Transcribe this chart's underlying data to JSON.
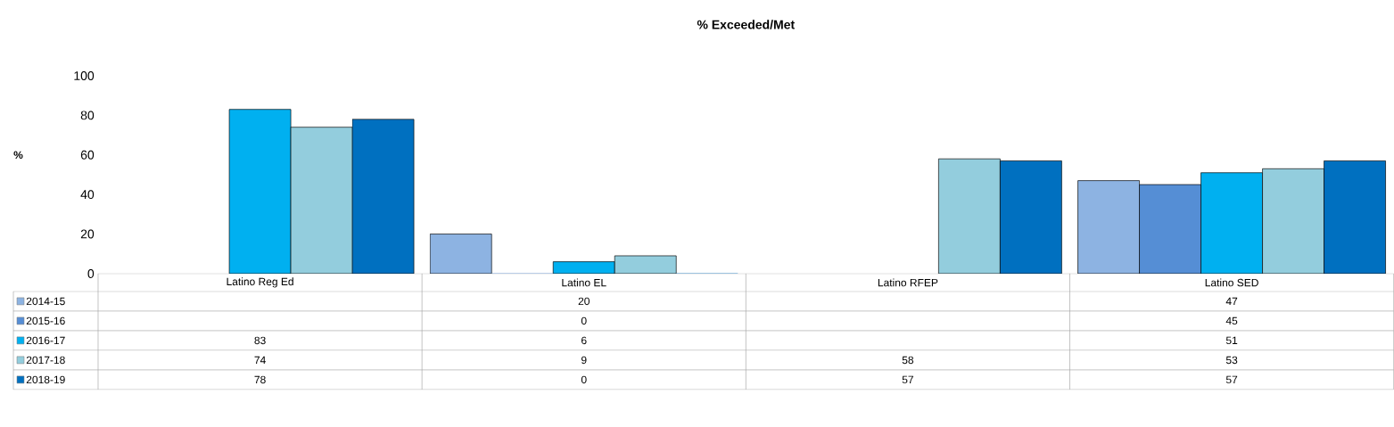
{
  "chart_data": {
    "type": "bar",
    "title": "% Exceeded/Met",
    "ylabel": "%",
    "categories": [
      "Latino Reg Ed",
      "Latino EL",
      "Latino RFEP",
      "Latino SED"
    ],
    "series": [
      {
        "name": "2014-15",
        "color": "#8db3e2",
        "values": [
          null,
          20,
          null,
          47
        ]
      },
      {
        "name": "2015-16",
        "color": "#558ed5",
        "values": [
          null,
          0,
          null,
          45
        ]
      },
      {
        "name": "2016-17",
        "color": "#00b0f0",
        "values": [
          83,
          6,
          null,
          51
        ]
      },
      {
        "name": "2017-18",
        "color": "#93cddd",
        "values": [
          74,
          9,
          58,
          53
        ]
      },
      {
        "name": "2018-19",
        "color": "#0070c0",
        "values": [
          78,
          0,
          57,
          57
        ]
      }
    ],
    "ylim": [
      0,
      100
    ],
    "yticks": [
      0,
      20,
      40,
      60,
      80,
      100
    ],
    "grid": false,
    "data_labels": true,
    "legend": "bottom"
  }
}
